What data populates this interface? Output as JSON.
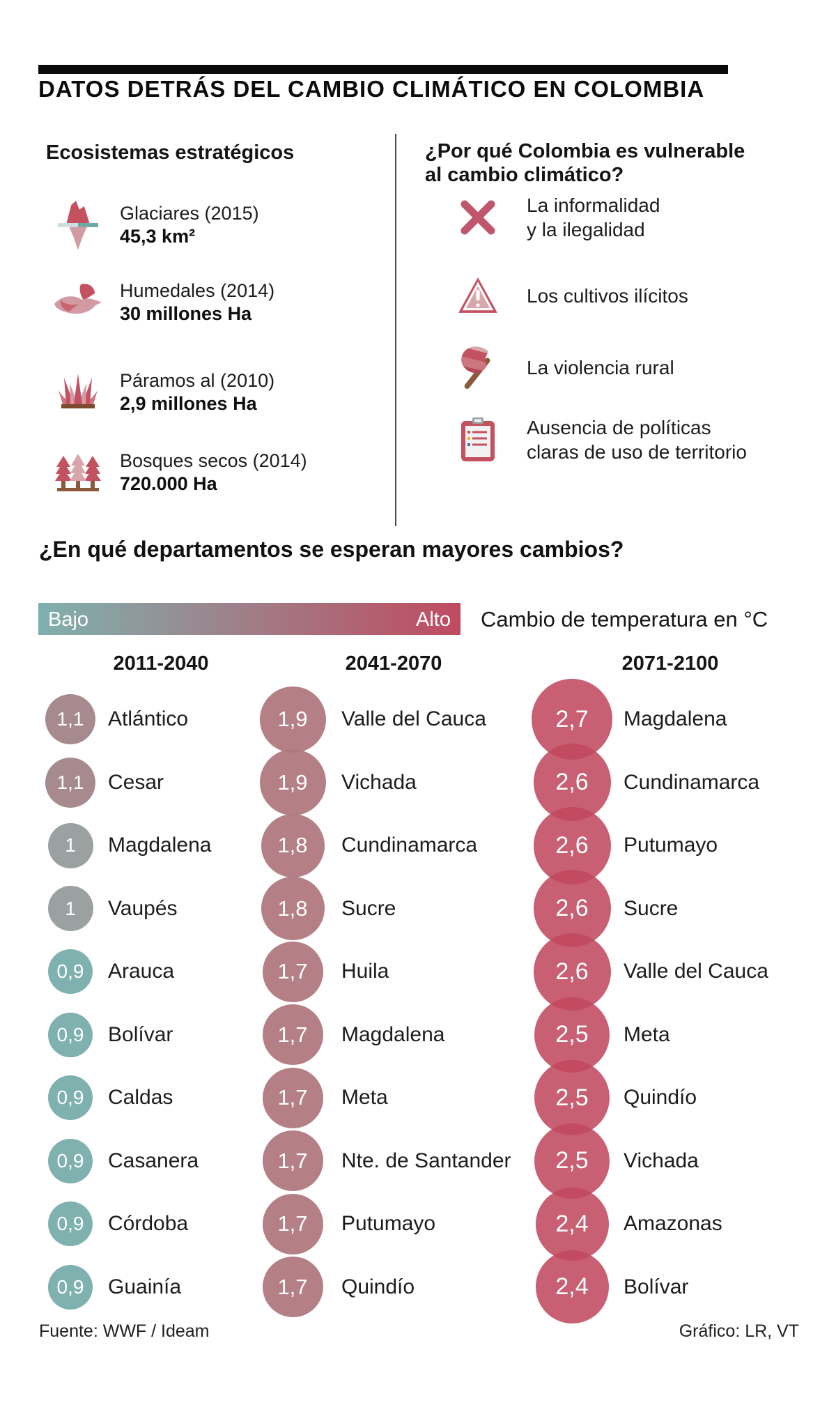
{
  "title": "DATOS DETRÁS DEL CAMBIO CLIMÁTICO EN COLOMBIA",
  "ecosystems": {
    "heading": "Ecosistemas estratégicos",
    "items": [
      {
        "icon": "glacier-icon",
        "label": "Glaciares (2015)",
        "value": "45,3 km²"
      },
      {
        "icon": "wetland-bird-icon",
        "label": "Humedales (2014)",
        "value": "30 millones Ha"
      },
      {
        "icon": "paramo-plant-icon",
        "label": "Páramos al (2010)",
        "value": "2,9 millones Ha"
      },
      {
        "icon": "dry-forest-icon",
        "label": "Bosques secos (2014)",
        "value": "720.000 Ha"
      }
    ]
  },
  "vulnerability": {
    "heading_line1": "¿Por qué Colombia es vulnerable",
    "heading_line2": "al cambio climático?",
    "items": [
      {
        "icon": "cross-icon",
        "line1": "La informalidad",
        "line2": "y la ilegalidad"
      },
      {
        "icon": "warning-icon",
        "line1": "Los cultivos ilícitos",
        "line2": ""
      },
      {
        "icon": "axe-icon",
        "line1": "La violencia rural",
        "line2": ""
      },
      {
        "icon": "clipboard-icon",
        "line1": "Ausencia de políticas",
        "line2": "claras de uso de territorio"
      }
    ]
  },
  "chart_heading": "¿En qué departamentos se esperan mayores cambios?",
  "legend": {
    "low": "Bajo",
    "high": "Alto",
    "caption": "Cambio de temperatura en °C",
    "gradient_from": "#7fb1ae",
    "gradient_to": "#c04a60"
  },
  "chart_data": {
    "type": "bubble-ranking",
    "unit": "°C",
    "title": "¿En qué departamentos se esperan mayores cambios?",
    "legend_position": "top",
    "columns": [
      {
        "period": "2011-2040",
        "entries": [
          {
            "value": "1,1",
            "label": "Atlántico"
          },
          {
            "value": "1,1",
            "label": "Cesar"
          },
          {
            "value": "1",
            "label": "Magdalena"
          },
          {
            "value": "1",
            "label": "Vaupés"
          },
          {
            "value": "0,9",
            "label": "Arauca"
          },
          {
            "value": "0,9",
            "label": "Bolívar"
          },
          {
            "value": "0,9",
            "label": "Caldas"
          },
          {
            "value": "0,9",
            "label": "Casanera"
          },
          {
            "value": "0,9",
            "label": "Córdoba"
          },
          {
            "value": "0,9",
            "label": "Guainía"
          }
        ]
      },
      {
        "period": "2041-2070",
        "entries": [
          {
            "value": "1,9",
            "label": "Valle del Cauca"
          },
          {
            "value": "1,9",
            "label": "Vichada"
          },
          {
            "value": "1,8",
            "label": "Cundinamarca"
          },
          {
            "value": "1,8",
            "label": "Sucre"
          },
          {
            "value": "1,7",
            "label": "Huila"
          },
          {
            "value": "1,7",
            "label": "Magdalena"
          },
          {
            "value": "1,7",
            "label": "Meta"
          },
          {
            "value": "1,7",
            "label": "Nte. de Santander"
          },
          {
            "value": "1,7",
            "label": "Putumayo"
          },
          {
            "value": "1,7",
            "label": "Quindío"
          }
        ]
      },
      {
        "period": "2071-2100",
        "entries": [
          {
            "value": "2,7",
            "label": "Magdalena"
          },
          {
            "value": "2,6",
            "label": "Cundinamarca"
          },
          {
            "value": "2,6",
            "label": "Putumayo"
          },
          {
            "value": "2,6",
            "label": "Sucre"
          },
          {
            "value": "2,6",
            "label": "Valle del Cauca"
          },
          {
            "value": "2,5",
            "label": "Meta"
          },
          {
            "value": "2,5",
            "label": "Quindío"
          },
          {
            "value": "2,5",
            "label": "Vichada"
          },
          {
            "value": "2,4",
            "label": "Amazonas"
          },
          {
            "value": "2,4",
            "label": "Bolívar"
          }
        ]
      }
    ],
    "value_styles": {
      "0,9": {
        "size": 64,
        "font": 28,
        "color": "#7fb1ae"
      },
      "1": {
        "size": 65,
        "font": 28,
        "color": "#9ba1a1"
      },
      "1,1": {
        "size": 72,
        "font": 28,
        "color": "#a78a8e"
      },
      "1,7": {
        "size": 87,
        "font": 31,
        "color": "rgba(176,120,126,0.95)"
      },
      "1,8": {
        "size": 91,
        "font": 31,
        "color": "rgba(176,120,126,0.95)"
      },
      "1,9": {
        "size": 95,
        "font": 31,
        "color": "rgba(176,120,126,0.95)"
      },
      "2,4": {
        "size": 105,
        "font": 34,
        "color": "rgba(192,73,94,0.88)"
      },
      "2,5": {
        "size": 108,
        "font": 34,
        "color": "rgba(192,73,94,0.88)"
      },
      "2,6": {
        "size": 111,
        "font": 34,
        "color": "rgba(192,73,94,0.88)"
      },
      "2,7": {
        "size": 116,
        "font": 34,
        "color": "rgba(192,73,94,0.88)"
      }
    }
  },
  "footer": {
    "source": "Fuente: WWF / Ideam",
    "credit": "Gráfico: LR, VT"
  }
}
